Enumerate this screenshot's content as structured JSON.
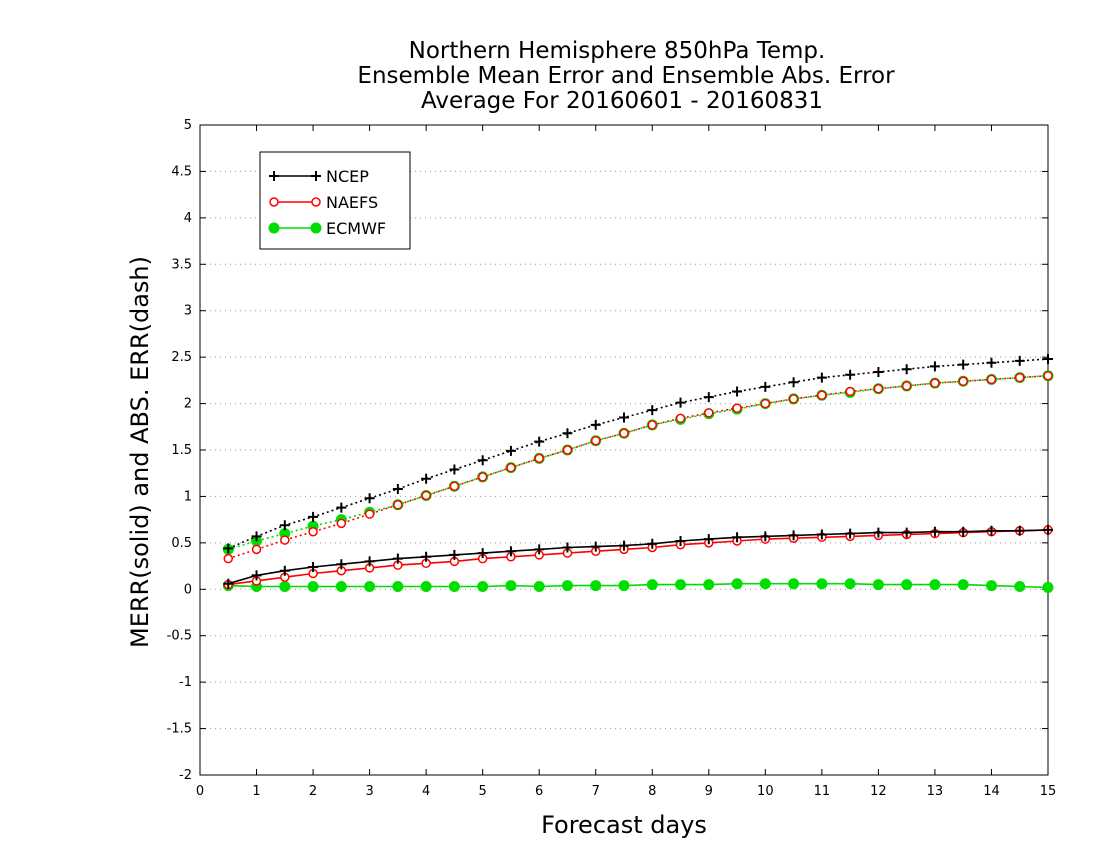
{
  "chart_data": {
    "type": "line",
    "title_lines": [
      "Northern Hemisphere 850hPa Temp.",
      "Ensemble Mean Error and Ensemble Abs. Error",
      "Average For 20160601 - 20160831"
    ],
    "xlabel": "Forecast days",
    "ylabel": "MERR(solid) and ABS. ERR(dash)",
    "xlim": [
      0,
      15
    ],
    "ylim": [
      -2,
      5
    ],
    "xticks": [
      "0",
      "1",
      "2",
      "3",
      "4",
      "5",
      "6",
      "7",
      "8",
      "9",
      "10",
      "11",
      "12",
      "13",
      "14",
      "15"
    ],
    "yticks": [
      "-2",
      "-1.5",
      "-1",
      "-0.5",
      "0",
      "0.5",
      "1",
      "1.5",
      "2",
      "2.5",
      "3",
      "3.5",
      "4",
      "4.5",
      "5"
    ],
    "grid": "dotted horizontal",
    "legend_position": "top-left",
    "x": [
      0.5,
      1,
      1.5,
      2,
      2.5,
      3,
      3.5,
      4,
      4.5,
      5,
      5.5,
      6,
      6.5,
      7,
      7.5,
      8,
      8.5,
      9,
      9.5,
      10,
      10.5,
      11,
      11.5,
      12,
      12.5,
      13,
      13.5,
      14,
      14.5,
      15
    ],
    "series": [
      {
        "name": "NCEP",
        "color": "#000000",
        "marker": "plus",
        "merr": [
          0.06,
          0.15,
          0.2,
          0.24,
          0.27,
          0.3,
          0.33,
          0.35,
          0.37,
          0.39,
          0.41,
          0.43,
          0.45,
          0.46,
          0.47,
          0.49,
          0.52,
          0.54,
          0.56,
          0.57,
          0.58,
          0.59,
          0.6,
          0.61,
          0.61,
          0.62,
          0.62,
          0.63,
          0.63,
          0.64
        ],
        "abs_err": [
          0.44,
          0.57,
          0.69,
          0.78,
          0.88,
          0.98,
          1.08,
          1.19,
          1.29,
          1.39,
          1.49,
          1.59,
          1.68,
          1.77,
          1.85,
          1.93,
          2.01,
          2.07,
          2.13,
          2.18,
          2.23,
          2.28,
          2.31,
          2.34,
          2.37,
          2.4,
          2.42,
          2.44,
          2.46,
          2.48
        ]
      },
      {
        "name": "NAEFS",
        "color": "#ff0000",
        "marker": "open-circle",
        "merr": [
          0.05,
          0.09,
          0.13,
          0.17,
          0.2,
          0.23,
          0.26,
          0.28,
          0.3,
          0.33,
          0.35,
          0.37,
          0.39,
          0.41,
          0.43,
          0.45,
          0.48,
          0.5,
          0.52,
          0.54,
          0.55,
          0.56,
          0.57,
          0.58,
          0.59,
          0.6,
          0.61,
          0.62,
          0.63,
          0.64
        ],
        "abs_err": [
          0.33,
          0.43,
          0.53,
          0.62,
          0.71,
          0.81,
          0.91,
          1.01,
          1.11,
          1.21,
          1.31,
          1.41,
          1.5,
          1.6,
          1.68,
          1.77,
          1.84,
          1.9,
          1.95,
          2.0,
          2.05,
          2.09,
          2.13,
          2.16,
          2.19,
          2.22,
          2.24,
          2.26,
          2.28,
          2.3
        ]
      },
      {
        "name": "ECMWF",
        "color": "#00dd00",
        "marker": "filled-circle",
        "merr": [
          0.04,
          0.03,
          0.03,
          0.03,
          0.03,
          0.03,
          0.03,
          0.03,
          0.03,
          0.03,
          0.04,
          0.03,
          0.04,
          0.04,
          0.04,
          0.05,
          0.05,
          0.05,
          0.06,
          0.06,
          0.06,
          0.06,
          0.06,
          0.05,
          0.05,
          0.05,
          0.05,
          0.04,
          0.03,
          0.02
        ],
        "abs_err": [
          0.43,
          0.52,
          0.6,
          0.68,
          0.75,
          0.83,
          0.91,
          1.01,
          1.11,
          1.21,
          1.31,
          1.41,
          1.5,
          1.6,
          1.68,
          1.77,
          1.83,
          1.89,
          1.94,
          2.0,
          2.05,
          2.09,
          2.12,
          2.16,
          2.19,
          2.22,
          2.24,
          2.26,
          2.28,
          2.3
        ]
      }
    ]
  }
}
